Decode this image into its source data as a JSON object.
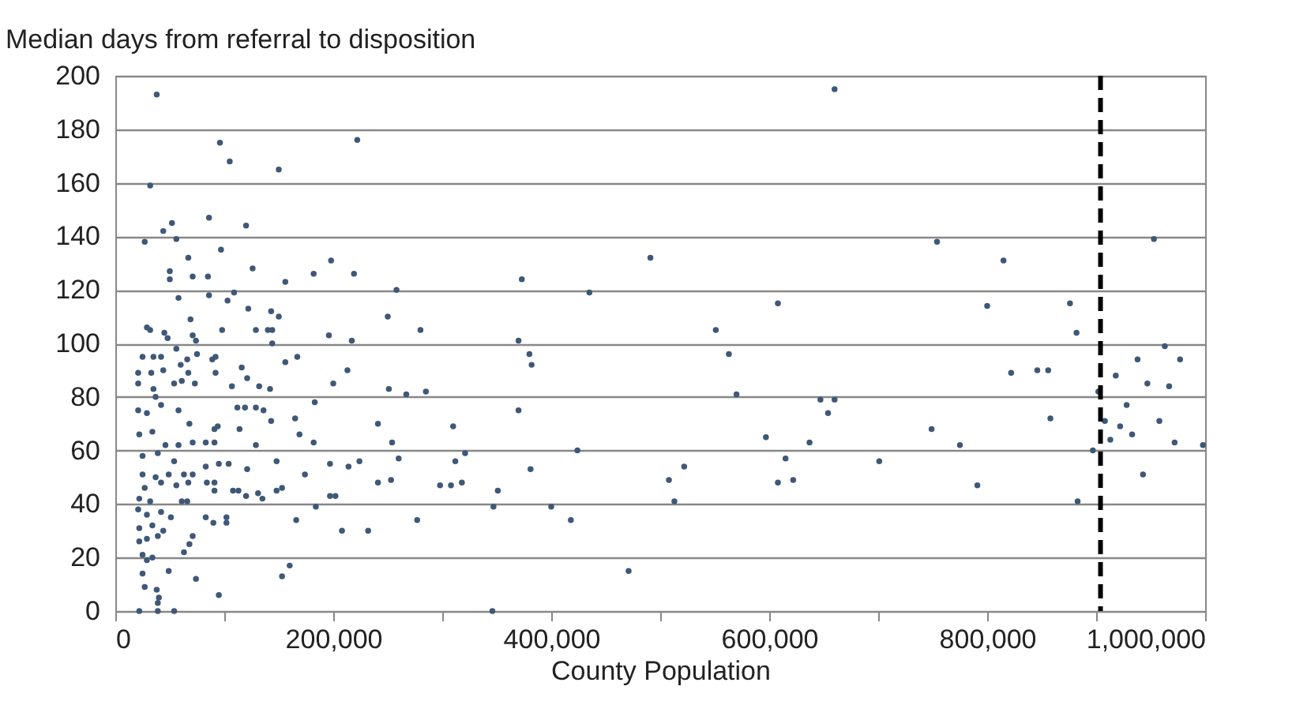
{
  "chart_data": {
    "type": "scatter",
    "ylabel": "Median days from referral to disposition",
    "xlabel": "County Population",
    "xlim": [
      0,
      1000000
    ],
    "ylim": [
      0,
      200
    ],
    "xticks": [
      0,
      {
        "value": 100000,
        "label": null
      },
      "200,000",
      {
        "value": 300000,
        "label": null
      },
      {
        "value": 400000,
        "label": "400,000"
      },
      {
        "value": 500000,
        "label": null
      },
      {
        "value": 600000,
        "label": "600,000"
      },
      {
        "value": 700000,
        "label": null
      },
      {
        "value": 800000,
        "label": "800,000"
      },
      {
        "value": 900000,
        "label": null
      },
      {
        "value": 1000000,
        "label": "1,000,000"
      }
    ],
    "yticks": [
      0,
      20,
      40,
      60,
      80,
      100,
      120,
      140,
      160,
      180,
      200
    ],
    "grid": "y",
    "marker": "circle",
    "ref_lines": [
      {
        "axis": "x",
        "value": 904000,
        "label": null,
        "color": "#000000",
        "line_style": "dashed"
      }
    ],
    "series": [
      {
        "color": "#3f5878",
        "x": [
          660000,
          754000,
          815000,
          608000,
          800000,
          876000,
          882000,
          953000,
          963000,
          938000,
          977000,
          822000,
          846000,
          856000,
          918000,
          947000,
          967000,
          902000,
          647000,
          660000,
          654000,
          928000,
          858000,
          908000,
          958000,
          922000,
          933000,
          749000,
          597000,
          637000,
          775000,
          913000,
          972000,
          998000,
          897000,
          615000,
          701000,
          608000,
          622000,
          791000,
          943000,
          883000,
          222000,
          491000,
          198000,
          182000,
          219000,
          156000,
          373000,
          258000,
          435000,
          250000,
          280000,
          551000,
          196000,
          217000,
          370000,
          380000,
          382000,
          563000,
          167000,
          156000,
          213000,
          200000,
          251000,
          267000,
          285000,
          570000,
          183000,
          370000,
          165000,
          241000,
          310000,
          169000,
          254000,
          182000,
          424000,
          321000,
          260000,
          197000,
          214000,
          224000,
          312000,
          381000,
          174000,
          241000,
          253000,
          298000,
          308000,
          318000,
          508000,
          522000,
          351000,
          197000,
          202000,
          513000,
          184000,
          347000,
          400000,
          166000,
          277000,
          418000,
          208000,
          232000,
          160000,
          471000,
          346000,
          38000,
          96000,
          105000,
          150000,
          32000,
          86000,
          52000,
          44000,
          120000,
          27000,
          56000,
          97000,
          67000,
          126000,
          50000,
          50000,
          71000,
          85000,
          58000,
          86000,
          109000,
          103000,
          122000,
          143000,
          150000,
          69000,
          29000,
          32000,
          45000,
          48000,
          71000,
          74000,
          98000,
          129000,
          140000,
          144000,
          144000,
          25000,
          35000,
          42000,
          56000,
          66000,
          75000,
          89000,
          92000,
          21000,
          33000,
          44000,
          67000,
          92000,
          116000,
          60000,
          21000,
          35000,
          54000,
          61000,
          73000,
          107000,
          121000,
          132000,
          142000,
          37000,
          21000,
          29000,
          42000,
          58000,
          68000,
          91000,
          94000,
          112000,
          119000,
          129000,
          136000,
          114000,
          143000,
          22000,
          34000,
          46000,
          58000,
          71000,
          83000,
          91000,
          129000,
          25000,
          39000,
          54000,
          83000,
          95000,
          104000,
          121000,
          148000,
          25000,
          37000,
          49000,
          63000,
          71000,
          27000,
          42000,
          56000,
          67000,
          84000,
          91000,
          91000,
          108000,
          113000,
          120000,
          131000,
          135000,
          148000,
          153000,
          22000,
          32000,
          61000,
          66000,
          21000,
          29000,
          42000,
          51000,
          83000,
          90000,
          102000,
          102000,
          22000,
          34000,
          44000,
          22000,
          29000,
          39000,
          71000,
          68000,
          63000,
          25000,
          34000,
          29000,
          49000,
          25000,
          27000,
          74000,
          38000,
          40000,
          95000,
          39000,
          22000,
          39000,
          54000,
          153000
        ],
        "values": [
          195,
          138,
          131,
          115,
          114,
          115,
          104,
          139,
          99,
          94,
          94,
          89,
          90,
          90,
          88,
          85,
          84,
          82,
          79,
          79,
          74,
          77,
          72,
          71,
          71,
          69,
          66,
          68,
          65,
          63,
          62,
          64,
          63,
          62,
          60,
          57,
          56,
          48,
          49,
          47,
          51,
          41,
          176,
          132,
          131,
          126,
          126,
          123,
          124,
          120,
          119,
          110,
          105,
          105,
          103,
          101,
          101,
          96,
          92,
          96,
          95,
          93,
          90,
          85,
          83,
          81,
          82,
          81,
          78,
          75,
          72,
          70,
          69,
          66,
          63,
          63,
          60,
          59,
          57,
          55,
          54,
          56,
          56,
          53,
          51,
          48,
          49,
          47,
          47,
          48,
          49,
          54,
          45,
          43,
          43,
          41,
          39,
          39,
          39,
          34,
          34,
          34,
          30,
          30,
          17,
          15,
          0,
          193,
          175,
          168,
          165,
          159,
          147,
          145,
          142,
          144,
          138,
          139,
          135,
          132,
          128,
          127,
          124,
          125,
          125,
          117,
          118,
          119,
          116,
          113,
          112,
          110,
          109,
          106,
          105,
          104,
          102,
          103,
          101,
          105,
          105,
          105,
          105,
          100,
          95,
          95,
          95,
          98,
          94,
          96,
          94,
          95,
          89,
          89,
          90,
          89,
          89,
          91,
          92,
          85,
          83,
          85,
          86,
          85,
          84,
          87,
          84,
          83,
          80,
          75,
          74,
          77,
          75,
          70,
          68,
          69,
          76,
          76,
          76,
          75,
          68,
          71,
          66,
          67,
          62,
          62,
          63,
          63,
          63,
          62,
          58,
          59,
          56,
          54,
          55,
          55,
          53,
          56,
          51,
          50,
          51,
          51,
          51,
          46,
          48,
          47,
          48,
          48,
          48,
          45,
          45,
          45,
          43,
          44,
          42,
          45,
          46,
          42,
          41,
          41,
          41,
          38,
          36,
          37,
          35,
          35,
          33,
          35,
          33,
          31,
          32,
          30,
          26,
          27,
          28,
          28,
          25,
          22,
          21,
          20,
          19,
          15,
          14,
          9,
          12,
          8,
          5,
          6,
          3,
          0,
          0,
          0,
          13
        ]
      }
    ]
  }
}
